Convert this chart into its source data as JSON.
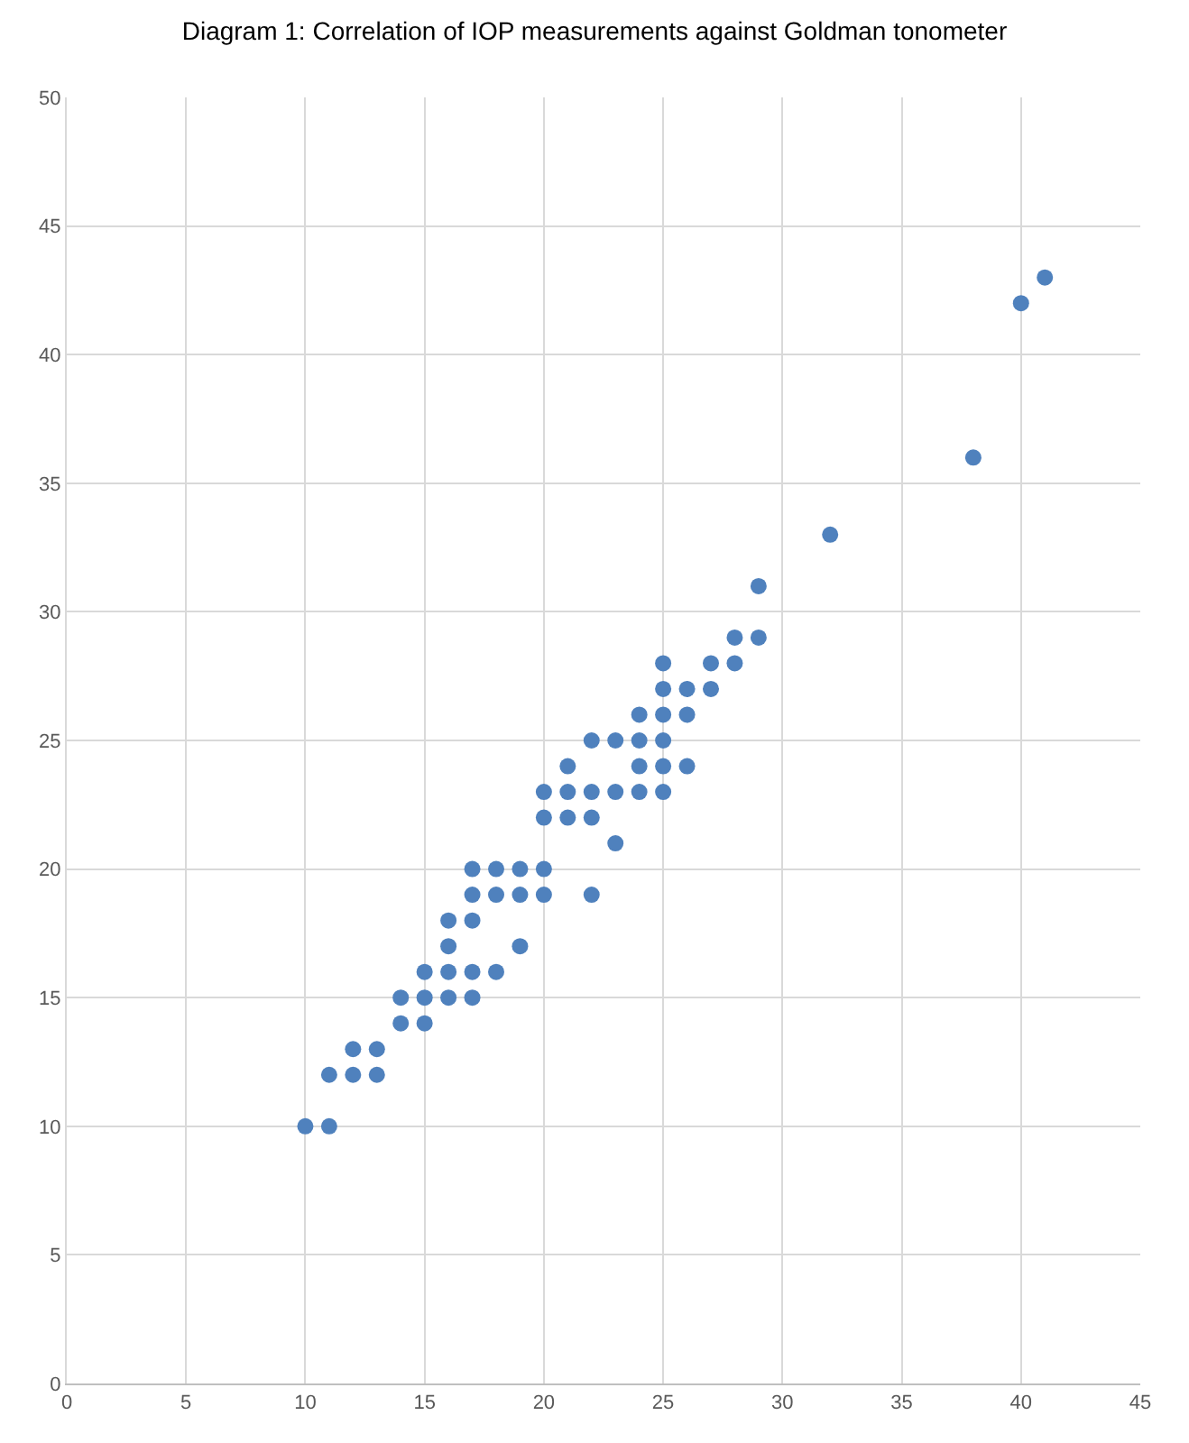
{
  "chart_data": {
    "type": "scatter",
    "title": "Diagram 1: Correlation of IOP measurements against Goldman tonometer",
    "x": [
      10,
      11,
      11,
      12,
      12,
      13,
      13,
      14,
      14,
      15,
      15,
      15,
      16,
      16,
      16,
      16,
      17,
      17,
      17,
      17,
      17,
      18,
      18,
      18,
      19,
      19,
      19,
      20,
      20,
      20,
      20,
      21,
      21,
      21,
      22,
      22,
      22,
      22,
      23,
      23,
      23,
      24,
      24,
      24,
      24,
      25,
      25,
      25,
      25,
      25,
      25,
      26,
      26,
      26,
      27,
      27,
      28,
      28,
      29,
      29,
      32,
      38,
      40,
      41
    ],
    "series": [
      {
        "color": "#4f81bd",
        "values": [
          10,
          10,
          12,
          12,
          13,
          12,
          13,
          14,
          15,
          14,
          15,
          16,
          15,
          16,
          17,
          18,
          15,
          16,
          18,
          19,
          20,
          16,
          19,
          20,
          17,
          19,
          20,
          19,
          20,
          22,
          23,
          22,
          23,
          24,
          19,
          22,
          23,
          25,
          21,
          23,
          25,
          23,
          24,
          25,
          26,
          23,
          24,
          25,
          26,
          27,
          28,
          24,
          26,
          27,
          27,
          28,
          28,
          29,
          29,
          31,
          33,
          36,
          42,
          43
        ]
      }
    ],
    "xlim": [
      0,
      45
    ],
    "xticks": [
      0,
      5,
      10,
      15,
      20,
      25,
      30,
      35,
      40,
      45
    ],
    "ylim": [
      0,
      50
    ],
    "yticks": [
      0,
      5,
      10,
      15,
      20,
      25,
      30,
      35,
      40,
      45,
      50
    ],
    "grid": true,
    "marker": "circle"
  }
}
